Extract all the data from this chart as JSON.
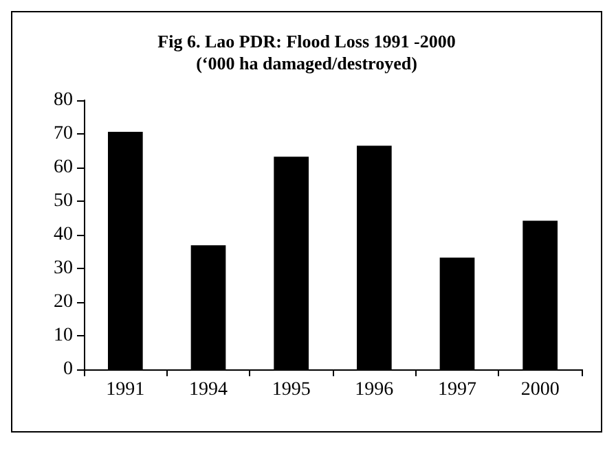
{
  "chart_data": {
    "type": "bar",
    "title": "Fig 6. Lao PDR: Flood Loss 1991 -2000\n(‘000 ha damaged/destroyed)",
    "categories": [
      "1991",
      "1994",
      "1995",
      "1996",
      "1997",
      "2000"
    ],
    "values": [
      70.6,
      36.9,
      63.2,
      66.5,
      33.2,
      44.2
    ],
    "color": "#000000",
    "ylim": [
      0,
      80
    ],
    "yticks": [
      0,
      10,
      20,
      30,
      40,
      50,
      60,
      70,
      80
    ],
    "grid": false
  }
}
